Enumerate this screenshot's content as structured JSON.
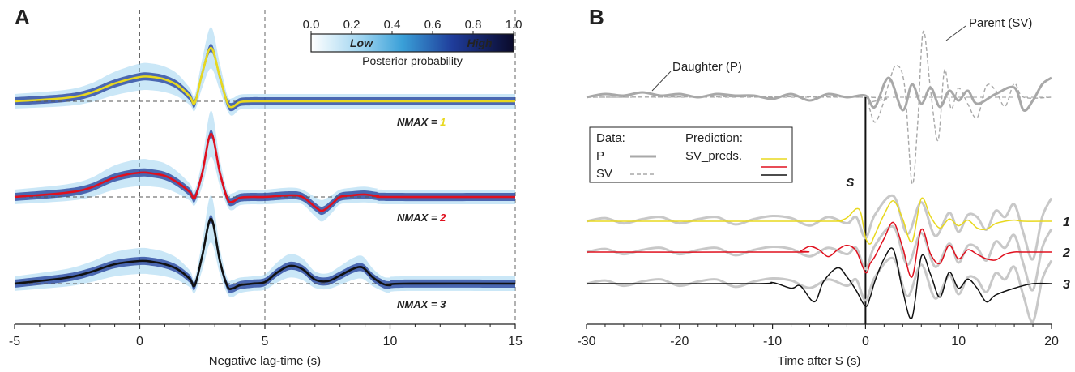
{
  "colors": {
    "nmax1": "#e8d81e",
    "nmax2": "#e0101e",
    "nmax3": "#111111",
    "data_p": "#a8a8a8",
    "data_sv": "#a8a8a8",
    "colorbar_low": "#ffffff",
    "colorbar_mid": "#3aa0d8",
    "colorbar_high": "#0a0a2a"
  },
  "chart_data": [
    {
      "panel": "A",
      "type": "line",
      "xlabel": "Negative lag-time (s)",
      "xlim": [
        -5,
        15
      ],
      "xticks": [
        "-5",
        "0",
        "5",
        "10",
        "15"
      ],
      "grid": "vertical dashed at 0, 5, 10, 15",
      "colorbar": {
        "ticks": [
          "0.0",
          "0.2",
          "0.4",
          "0.6",
          "0.8",
          "1.0"
        ],
        "low_label": "Low",
        "high_label": "High",
        "title": "Posterior probability"
      },
      "series": [
        {
          "name": "NMAX = 1",
          "prefix": "NMAX = ",
          "index": "1",
          "x": [
            -5,
            -3,
            -2,
            -1,
            0,
            0.5,
            1,
            1.5,
            2,
            2.2,
            2.5,
            2.85,
            3.2,
            3.5,
            3.7,
            4,
            4.5,
            5,
            10,
            15
          ],
          "y": [
            0,
            0.04,
            0.1,
            0.22,
            0.3,
            0.3,
            0.27,
            0.2,
            0.06,
            -0.02,
            0.35,
            0.66,
            0.3,
            -0.02,
            -0.07,
            -0.01,
            0,
            0,
            0,
            0
          ]
        },
        {
          "name": "NMAX = 2",
          "prefix": "NMAX = ",
          "index": "2",
          "x": [
            -5,
            -3,
            -2,
            -1,
            0,
            0.5,
            1,
            1.5,
            2,
            2.2,
            2.5,
            2.85,
            3.2,
            3.5,
            3.7,
            4,
            4.5,
            5,
            6,
            6.5,
            7,
            7.3,
            7.7,
            8,
            8.5,
            9,
            9.5,
            10,
            15
          ],
          "y": [
            0,
            0.05,
            0.11,
            0.24,
            0.3,
            0.29,
            0.26,
            0.18,
            0.06,
            -0.01,
            0.3,
            0.78,
            0.3,
            -0.02,
            -0.06,
            -0.01,
            0,
            0,
            0.02,
            0,
            -0.12,
            -0.17,
            -0.08,
            0,
            0.02,
            0.03,
            0.01,
            0,
            0
          ]
        },
        {
          "name": "NMAX = 3",
          "prefix": "NMAX = ",
          "index": "3",
          "x": [
            -5,
            -3,
            -2,
            -1,
            0,
            0.5,
            1,
            1.5,
            2,
            2.2,
            2.5,
            2.85,
            3.2,
            3.5,
            3.7,
            4,
            4.5,
            5,
            5.5,
            6,
            6.5,
            7,
            7.5,
            8,
            8.5,
            8.9,
            9.3,
            9.7,
            10,
            10.5,
            15
          ],
          "y": [
            0,
            0.07,
            0.14,
            0.24,
            0.28,
            0.27,
            0.24,
            0.18,
            0.06,
            -0.02,
            0.35,
            0.8,
            0.28,
            -0.03,
            -0.06,
            -0.02,
            0,
            0.02,
            0.14,
            0.22,
            0.18,
            0.05,
            0.03,
            0.1,
            0.18,
            0.2,
            0.08,
            0,
            -0.02,
            0,
            0
          ]
        }
      ]
    },
    {
      "panel": "B",
      "type": "line",
      "xlabel": "Time after S (s)",
      "xlim": [
        -30,
        20
      ],
      "xticks": [
        "-30",
        "-20",
        "-10",
        "0",
        "10",
        "20"
      ],
      "s_marker_label": "S",
      "annotations": {
        "daughter": "Daughter (P)",
        "parent": "Parent (SV)"
      },
      "legend": {
        "data_title": "Data:",
        "data_p": "P",
        "data_sv": "SV",
        "pred_title": "Prediction:",
        "pred_label": "SV_preds."
      },
      "trace_labels": [
        "1",
        "2",
        "3"
      ],
      "daughter_p": {
        "x": [
          -30,
          -28,
          -26,
          -24,
          -22,
          -20,
          -18,
          -16,
          -14,
          -12,
          -10,
          -8,
          -6,
          -4,
          -2,
          0,
          1,
          2.5,
          4,
          5,
          6,
          7,
          8,
          9,
          10,
          11,
          12,
          14,
          16,
          17,
          18,
          19,
          20
        ],
        "y": [
          0,
          0.1,
          0.05,
          0.15,
          0.05,
          0.1,
          0,
          0.1,
          0.05,
          0.05,
          -0.05,
          0.1,
          -0.1,
          0.1,
          0,
          0.05,
          -0.3,
          0.6,
          -0.4,
          0.4,
          -0.2,
          0.3,
          -0.3,
          0.2,
          -0.1,
          0.2,
          -0.2,
          0.1,
          0.3,
          -0.4,
          -0.1,
          0.4,
          0.6
        ]
      },
      "parent_sv": {
        "x": [
          -30,
          0,
          0.3,
          1,
          1.8,
          2.5,
          3.3,
          4.2,
          5,
          5.6,
          6.2,
          7,
          7.8,
          8.5,
          9.2,
          10,
          11,
          12,
          13,
          14,
          15,
          16,
          17,
          20
        ],
        "y": [
          0,
          0,
          -0.3,
          -1.1,
          -0.4,
          0.6,
          1.4,
          0.5,
          -3.8,
          -1.2,
          2.9,
          0.3,
          -1.9,
          1.2,
          -0.5,
          0.4,
          -0.3,
          -0.9,
          0.5,
          0.3,
          -0.4,
          0.6,
          0,
          0
        ]
      },
      "observed_traces": {
        "x": [
          -30,
          -28,
          -26,
          -24,
          -22,
          -20,
          -18,
          -16,
          -14,
          -12,
          -10,
          -8,
          -6,
          -4,
          -2,
          -1,
          0,
          1,
          3,
          4.5,
          6,
          7.5,
          9,
          10,
          11,
          12,
          13,
          14,
          15,
          16,
          17,
          18,
          19,
          20
        ],
        "y": [
          0,
          0.15,
          -0.1,
          0.1,
          0.2,
          -0.1,
          0.1,
          0.2,
          -0.15,
          0.1,
          0.25,
          0.15,
          -0.2,
          0.2,
          -0.1,
          0.2,
          -0.8,
          0.3,
          1.2,
          -0.6,
          0.9,
          -0.7,
          0.4,
          -0.5,
          0.3,
          0.2,
          -0.4,
          0.5,
          0.2,
          0.8,
          -0.6,
          -1.8,
          0.2,
          1.1
        ]
      },
      "predictions": [
        {
          "name": "1",
          "x": [
            -30,
            -5,
            -3,
            -2,
            -1,
            -0.5,
            0,
            0.5,
            1,
            2,
            3,
            4,
            5,
            6,
            7,
            8,
            9,
            10,
            11,
            12,
            13,
            14,
            15,
            16,
            17,
            20
          ],
          "y": [
            0,
            0,
            0.02,
            0.15,
            0.55,
            0.35,
            -0.7,
            -1.0,
            -0.6,
            0.3,
            0.9,
            0.1,
            -0.9,
            1.0,
            0.2,
            -0.3,
            0.1,
            -0.2,
            0.05,
            -0.3,
            -0.35,
            -0.1,
            0,
            0.05,
            0,
            0
          ]
        },
        {
          "name": "2",
          "x": [
            -30,
            -8,
            -7,
            -6,
            -5,
            -4,
            -3,
            -2,
            -1,
            0,
            0.5,
            1,
            2,
            3,
            4,
            5,
            6,
            7,
            8,
            9,
            10,
            11,
            12,
            13,
            14,
            15,
            16,
            17,
            20
          ],
          "y": [
            0,
            0,
            0.05,
            0.25,
            0.1,
            -0.2,
            0.1,
            0.3,
            0.05,
            -0.9,
            -0.5,
            -0.2,
            0.6,
            1.3,
            0.2,
            -1.1,
            1.0,
            -0.1,
            -0.5,
            0.3,
            -0.3,
            0.1,
            -0.1,
            -0.3,
            -0.35,
            -0.1,
            0,
            0,
            0
          ]
        },
        {
          "name": "3",
          "x": [
            -30,
            -12,
            -10,
            -8,
            -7,
            -5.5,
            -4.5,
            -3,
            -2,
            -1,
            0,
            0.5,
            1,
            2,
            3,
            4,
            5,
            6,
            7,
            8,
            9,
            10,
            11,
            12,
            13,
            14,
            16,
            18,
            20
          ],
          "y": [
            0,
            0,
            0.05,
            -0.2,
            -0.1,
            -0.8,
            0.1,
            0.7,
            0.3,
            -0.3,
            -1.0,
            -0.6,
            0.1,
            1.1,
            1.5,
            -0.3,
            -1.5,
            1.2,
            0.4,
            -0.6,
            0.5,
            -0.2,
            0.2,
            -0.2,
            -0.8,
            -0.5,
            -0.2,
            0,
            0
          ]
        }
      ]
    }
  ]
}
